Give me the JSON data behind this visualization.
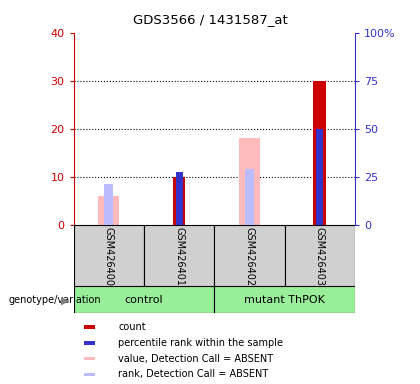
{
  "title": "GDS3566 / 1431587_at",
  "samples": [
    "GSM426400",
    "GSM426401",
    "GSM426402",
    "GSM426403"
  ],
  "group_labels": [
    "control",
    "mutant ThPOK"
  ],
  "count": [
    0,
    10,
    0,
    30
  ],
  "percentile_rank": [
    0,
    11,
    0,
    20
  ],
  "value_absent": [
    6,
    0,
    18,
    0
  ],
  "rank_absent": [
    8.5,
    0,
    11.5,
    0
  ],
  "ylim_left": [
    0,
    40
  ],
  "ylim_right": [
    0,
    100
  ],
  "yticks_left": [
    0,
    10,
    20,
    30,
    40
  ],
  "yticks_right": [
    0,
    25,
    50,
    75,
    100
  ],
  "yticklabels_right": [
    "0",
    "25",
    "50",
    "75",
    "100%"
  ],
  "color_count": "#cc0000",
  "color_rank": "#3333cc",
  "color_value_absent": "#ffbbbb",
  "color_rank_absent": "#bbbbff",
  "color_group_bg": "#99ee99",
  "bg_color": "#d0d0d0",
  "legend_items": [
    [
      "#cc0000",
      "count"
    ],
    [
      "#3333cc",
      "percentile rank within the sample"
    ],
    [
      "#ffbbbb",
      "value, Detection Call = ABSENT"
    ],
    [
      "#bbbbff",
      "rank, Detection Call = ABSENT"
    ]
  ]
}
